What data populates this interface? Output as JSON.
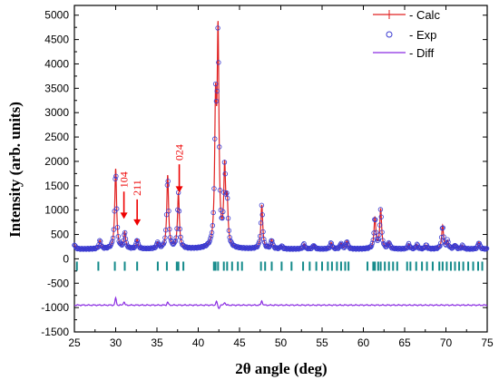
{
  "chart_data": {
    "type": "line",
    "xlabel": "2θ angle (deg)",
    "ylabel": "Intensity (arb. units)",
    "xlim": [
      25,
      75
    ],
    "ylim": [
      -1500,
      5200
    ],
    "xticks": [
      25,
      30,
      35,
      40,
      45,
      50,
      55,
      60,
      65,
      70,
      75
    ],
    "yticks": [
      -1500,
      -1000,
      -500,
      0,
      500,
      1000,
      1500,
      2000,
      2500,
      3000,
      3500,
      4000,
      4500,
      5000
    ],
    "grid": false,
    "legend_position": "top-right",
    "legend": [
      {
        "label": "- Calc",
        "color": "#e02020",
        "style": "line"
      },
      {
        "label": "- Exp",
        "color": "#3a3ad0",
        "style": "circle"
      },
      {
        "label": "- Diff",
        "color": "#8a2be2",
        "style": "line"
      }
    ],
    "background_level": 200,
    "peaks": [
      {
        "x": 25.0,
        "y": 290
      },
      {
        "x": 28.1,
        "y": 370
      },
      {
        "x": 30.0,
        "y": 1840
      },
      {
        "x": 31.1,
        "y": 530
      },
      {
        "x": 32.6,
        "y": 390
      },
      {
        "x": 35.1,
        "y": 330
      },
      {
        "x": 36.3,
        "y": 1700
      },
      {
        "x": 37.6,
        "y": 1340
      },
      {
        "x": 42.1,
        "y": 2900
      },
      {
        "x": 42.4,
        "y": 4400
      },
      {
        "x": 43.2,
        "y": 1750
      },
      {
        "x": 43.5,
        "y": 1050
      },
      {
        "x": 47.7,
        "y": 1100
      },
      {
        "x": 48.9,
        "y": 380
      },
      {
        "x": 50.1,
        "y": 260
      },
      {
        "x": 52.8,
        "y": 300
      },
      {
        "x": 54.0,
        "y": 280
      },
      {
        "x": 56.1,
        "y": 330
      },
      {
        "x": 57.3,
        "y": 320
      },
      {
        "x": 58.0,
        "y": 360
      },
      {
        "x": 61.4,
        "y": 840
      },
      {
        "x": 62.1,
        "y": 1010
      },
      {
        "x": 63.1,
        "y": 330
      },
      {
        "x": 65.5,
        "y": 300
      },
      {
        "x": 66.5,
        "y": 290
      },
      {
        "x": 67.6,
        "y": 280
      },
      {
        "x": 69.6,
        "y": 680
      },
      {
        "x": 70.2,
        "y": 360
      },
      {
        "x": 71.1,
        "y": 280
      },
      {
        "x": 72.0,
        "y": 270
      },
      {
        "x": 74.0,
        "y": 340
      }
    ],
    "bragg_ticks_y": -150,
    "bragg_positions": [
      25.3,
      27.9,
      29.9,
      31.1,
      32.6,
      35.1,
      36.2,
      37.4,
      37.6,
      38.2,
      41.9,
      42.1,
      42.4,
      43.1,
      43.5,
      44.1,
      44.8,
      45.3,
      47.6,
      48.1,
      48.9,
      50.1,
      51.3,
      52.7,
      53.5,
      54.3,
      55.0,
      55.7,
      56.2,
      56.8,
      57.3,
      57.8,
      58.2,
      60.5,
      61.2,
      61.4,
      61.8,
      62.1,
      62.6,
      63.1,
      63.6,
      64.1,
      65.3,
      65.7,
      66.4,
      67.1,
      67.7,
      68.4,
      69.2,
      69.6,
      70.1,
      70.6,
      71.1,
      71.6,
      72.1,
      72.7,
      73.3,
      73.9,
      74.4
    ],
    "diff_baseline": -950,
    "diff_features": [
      {
        "x": 30.0,
        "y": -810
      },
      {
        "x": 31.0,
        "y": -880
      },
      {
        "x": 36.3,
        "y": -890
      },
      {
        "x": 42.2,
        "y": -880
      },
      {
        "x": 42.5,
        "y": -1020
      },
      {
        "x": 43.2,
        "y": -890
      },
      {
        "x": 47.7,
        "y": -860
      }
    ],
    "annotations": [
      {
        "text": "104",
        "x": 31.0,
        "arrow_top": 1380,
        "arrow_bottom": 820
      },
      {
        "text": "211",
        "x": 32.6,
        "arrow_top": 1220,
        "arrow_bottom": 680
      },
      {
        "text": "024",
        "x": 37.7,
        "arrow_top": 1940,
        "arrow_bottom": 1360
      }
    ]
  }
}
